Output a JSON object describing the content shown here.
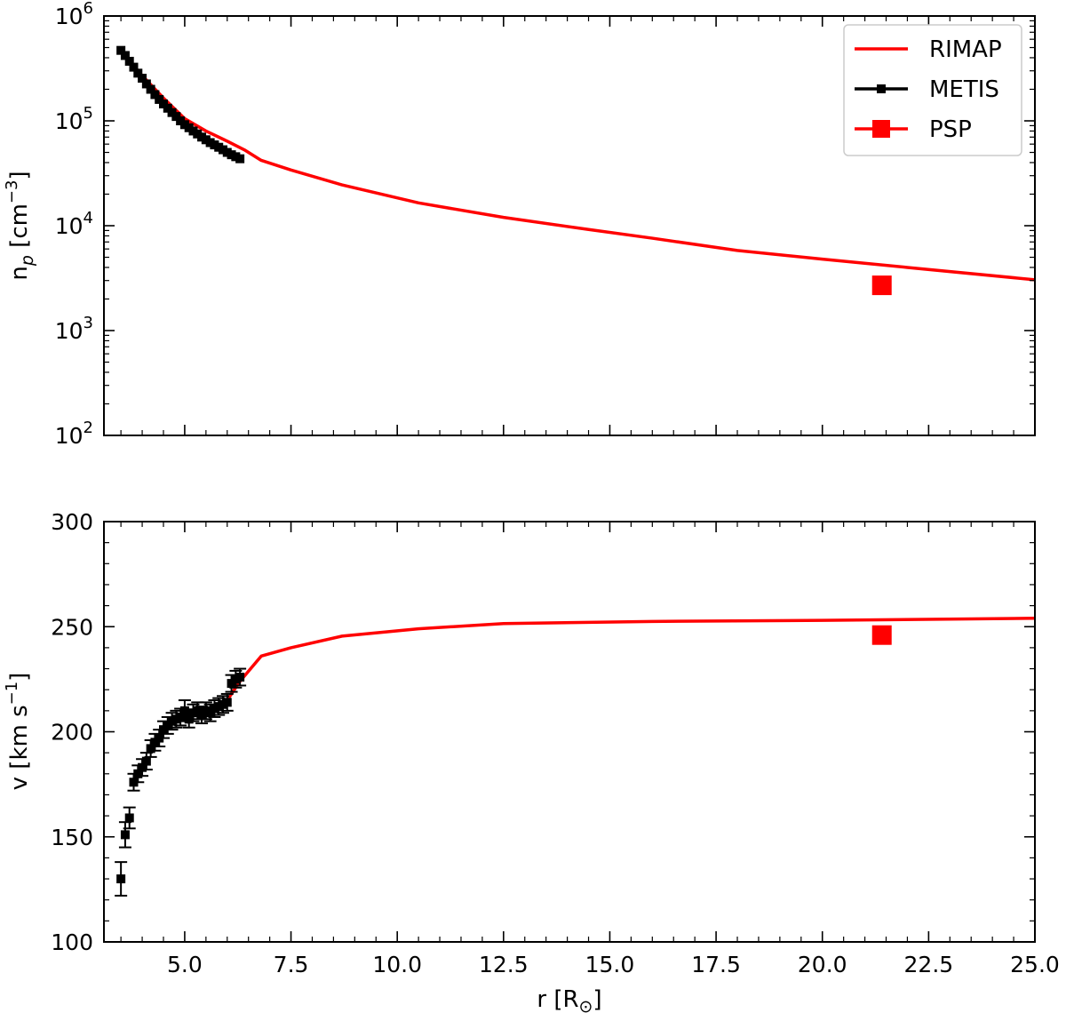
{
  "chart_data": [
    {
      "type": "line",
      "panel": "top",
      "ylabel_main": "n",
      "ylabel_sub": "p",
      "ylabel_unit_pre": "[cm",
      "ylabel_unit_exp": "−3",
      "ylabel_unit_post": "]",
      "yscale": "log",
      "ylim": [
        100,
        1000000
      ],
      "xlim": [
        3.1,
        25.0
      ],
      "yticks": [
        {
          "base": "10",
          "exp": "2",
          "value": 100
        },
        {
          "base": "10",
          "exp": "3",
          "value": 1000
        },
        {
          "base": "10",
          "exp": "4",
          "value": 10000
        },
        {
          "base": "10",
          "exp": "5",
          "value": 100000
        },
        {
          "base": "10",
          "exp": "6",
          "value": 1000000
        }
      ],
      "legend": {
        "position": "top-right",
        "entries": [
          {
            "label": "RIMAP",
            "color": "#ff0000",
            "marker": "none"
          },
          {
            "label": "METIS",
            "color": "#000000",
            "marker": "small-square"
          },
          {
            "label": "PSP",
            "color": "#ff0000",
            "marker": "large-square"
          }
        ]
      },
      "series": [
        {
          "name": "RIMAP",
          "color": "#ff0000",
          "x": [
            3.5,
            4.0,
            4.5,
            5.0,
            5.5,
            6.0,
            6.4,
            6.8,
            7.5,
            8.7,
            10.5,
            12.5,
            14.5,
            16.0,
            18.0,
            20.0,
            22.0,
            25.0
          ],
          "y": [
            470000,
            270000,
            165000,
            105000,
            80000,
            64000,
            53000,
            42000,
            34000,
            24500,
            16500,
            12000,
            9200,
            7600,
            5800,
            4800,
            4000,
            3050
          ]
        },
        {
          "name": "METIS",
          "color": "#000000",
          "x": [
            3.5,
            3.6,
            3.7,
            3.8,
            3.9,
            4.0,
            4.1,
            4.2,
            4.3,
            4.4,
            4.5,
            4.6,
            4.7,
            4.8,
            4.9,
            5.0,
            5.1,
            5.2,
            5.3,
            5.4,
            5.5,
            5.6,
            5.7,
            5.8,
            5.9,
            6.0,
            6.1,
            6.2,
            6.3
          ],
          "y": [
            470000,
            420000,
            370000,
            325000,
            285000,
            255000,
            225000,
            200000,
            178000,
            160000,
            145000,
            132000,
            120000,
            110000,
            100000,
            92000,
            86000,
            80000,
            75000,
            70000,
            66000,
            62000,
            59000,
            56000,
            53000,
            50000,
            47500,
            45500,
            43500
          ]
        },
        {
          "name": "PSP",
          "color": "#ff0000",
          "x": [
            21.4
          ],
          "y": [
            2700
          ]
        }
      ]
    },
    {
      "type": "line",
      "panel": "bottom",
      "ylabel_pre": "v [km s",
      "ylabel_exp": "−1",
      "ylabel_post": "]",
      "xlabel_pre": "r [R",
      "xlabel_sub": "⊙",
      "xlabel_post": "]",
      "ylim": [
        100,
        300
      ],
      "xlim": [
        3.1,
        25.0
      ],
      "yticks": [
        {
          "label": "100",
          "value": 100
        },
        {
          "label": "150",
          "value": 150
        },
        {
          "label": "200",
          "value": 200
        },
        {
          "label": "250",
          "value": 250
        },
        {
          "label": "300",
          "value": 300
        }
      ],
      "xticks": [
        {
          "label": "5.0",
          "value": 5.0
        },
        {
          "label": "7.5",
          "value": 7.5
        },
        {
          "label": "10.0",
          "value": 10.0
        },
        {
          "label": "12.5",
          "value": 12.5
        },
        {
          "label": "15.0",
          "value": 15.0
        },
        {
          "label": "17.5",
          "value": 17.5
        },
        {
          "label": "20.0",
          "value": 20.0
        },
        {
          "label": "22.5",
          "value": 22.5
        },
        {
          "label": "25.0",
          "value": 25.0
        }
      ],
      "series": [
        {
          "name": "RIMAP",
          "color": "#ff0000",
          "x": [
            5.8,
            6.0,
            6.3,
            6.8,
            7.5,
            8.7,
            10.5,
            12.5,
            16.0,
            20.0,
            25.0
          ],
          "y": [
            211,
            215,
            224,
            236,
            240,
            245.5,
            249,
            251.5,
            252.5,
            253,
            254
          ]
        },
        {
          "name": "METIS",
          "color": "#000000",
          "x": [
            3.5,
            3.6,
            3.7,
            3.8,
            3.9,
            4.0,
            4.1,
            4.2,
            4.3,
            4.4,
            4.5,
            4.6,
            4.7,
            4.8,
            4.9,
            5.0,
            5.1,
            5.2,
            5.3,
            5.4,
            5.5,
            5.6,
            5.7,
            5.8,
            5.9,
            6.0,
            6.1,
            6.2,
            6.3
          ],
          "y": [
            130,
            151,
            159,
            176,
            180,
            183,
            186,
            192,
            195,
            197,
            201,
            203,
            205,
            206,
            207,
            210,
            206,
            209,
            210,
            208,
            210,
            209,
            211,
            212,
            213,
            214,
            223,
            225,
            226
          ],
          "yerr": [
            8,
            6,
            5,
            4,
            4,
            4,
            4,
            4,
            4,
            4,
            4,
            4,
            4,
            4,
            4,
            5,
            4,
            4,
            4,
            4,
            4,
            4,
            4,
            4,
            4,
            4,
            4,
            4,
            4
          ]
        },
        {
          "name": "PSP",
          "color": "#ff0000",
          "x": [
            21.4
          ],
          "y": [
            246
          ]
        }
      ]
    }
  ]
}
